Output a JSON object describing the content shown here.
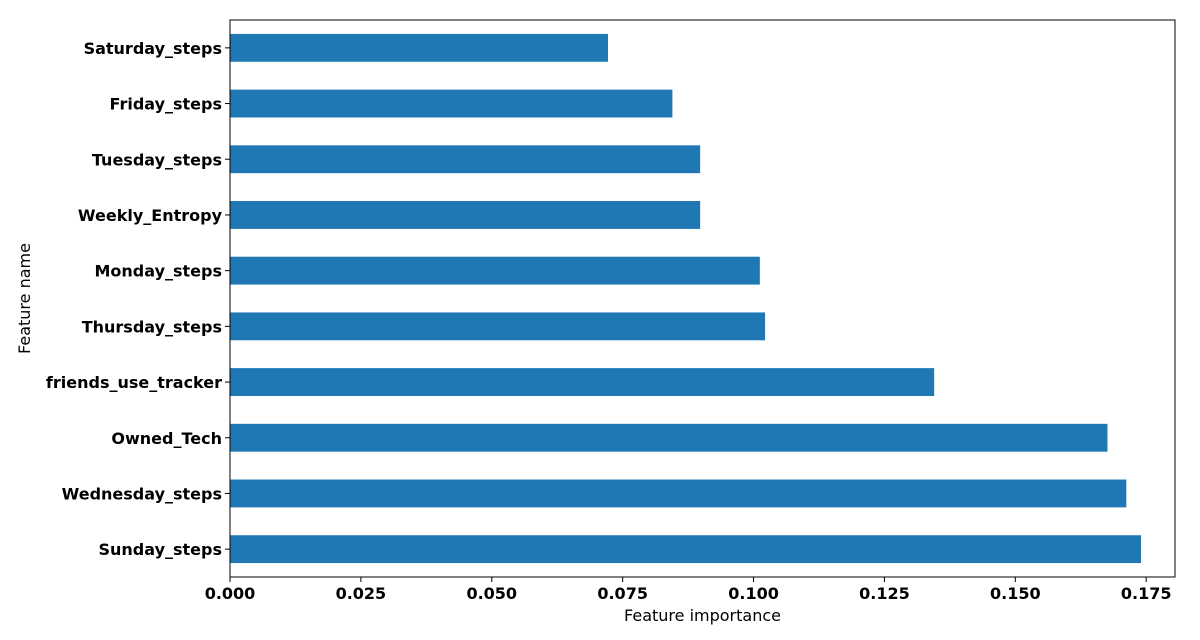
{
  "chart_data": {
    "type": "bar",
    "orientation": "horizontal",
    "categories": [
      "Saturday_steps",
      "Friday_steps",
      "Tuesday_steps",
      "Weekly_Entropy",
      "Monday_steps",
      "Thursday_steps",
      "friends_use_tracker",
      "Owned_Tech",
      "Wednesday_steps",
      "Sunday_steps"
    ],
    "values": [
      0.0722,
      0.0845,
      0.0898,
      0.0898,
      0.1012,
      0.1022,
      0.1345,
      0.1676,
      0.1712,
      0.174
    ],
    "xlabel": "Feature importance",
    "ylabel": "Feature name",
    "xlim": [
      0.0,
      0.1805
    ],
    "xticks": [
      0.0,
      0.025,
      0.05,
      0.075,
      0.1,
      0.125,
      0.15,
      0.175
    ],
    "xtick_labels": [
      "0.000",
      "0.025",
      "0.050",
      "0.075",
      "0.100",
      "0.125",
      "0.150",
      "0.175"
    ],
    "bar_color": "#1f77b4",
    "grid": false
  }
}
